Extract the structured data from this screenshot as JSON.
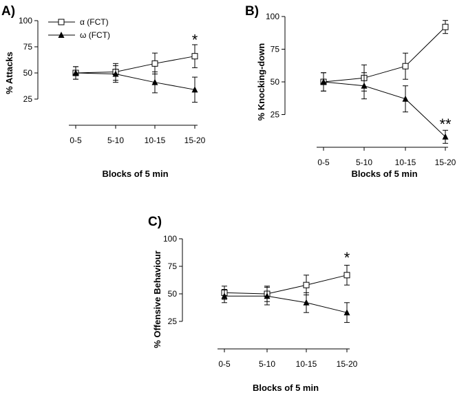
{
  "legend": {
    "items": [
      {
        "name": "alpha",
        "label": "α (FCT)",
        "marker": "open-square"
      },
      {
        "name": "omega",
        "label": "ω (FCT)",
        "marker": "filled-triangle"
      }
    ]
  },
  "chart_data": [
    {
      "type": "line",
      "panel": "A)",
      "xlabel": "Blocks of 5 min",
      "ylabel": "% Attacks",
      "categories": [
        "0-5",
        "5-10",
        "10-15",
        "15-20"
      ],
      "ylim": [
        0,
        100
      ],
      "yticks": [
        25,
        50,
        75,
        100
      ],
      "series": [
        {
          "name": "α (FCT)",
          "values": [
            50,
            51,
            59,
            66
          ],
          "err": [
            6,
            8,
            10,
            11
          ]
        },
        {
          "name": "ω (FCT)",
          "values": [
            50,
            49,
            41,
            34
          ],
          "err": [
            6,
            8,
            10,
            12
          ]
        }
      ],
      "annotations": [
        {
          "text": "*",
          "category": "15-20",
          "y": 82
        }
      ]
    },
    {
      "type": "line",
      "panel": "B)",
      "xlabel": "Blocks of 5 min",
      "ylabel": "% Knocking-down",
      "categories": [
        "0-5",
        "5-10",
        "10-15",
        "15-20"
      ],
      "ylim": [
        0,
        100
      ],
      "yticks": [
        25,
        50,
        75,
        100
      ],
      "series": [
        {
          "name": "α (FCT)",
          "values": [
            50,
            53,
            62,
            92
          ],
          "err": [
            7,
            10,
            10,
            5
          ]
        },
        {
          "name": "ω (FCT)",
          "values": [
            50,
            47,
            37,
            8
          ],
          "err": [
            7,
            10,
            10,
            5
          ]
        }
      ],
      "annotations": [
        {
          "text": "**",
          "category": "15-20",
          "y": 18
        }
      ]
    },
    {
      "type": "line",
      "panel": "C)",
      "xlabel": "Blocks of 5 min",
      "ylabel": "% Offensive Behaviour",
      "categories": [
        "0-5",
        "5-10",
        "10-15",
        "15-20"
      ],
      "ylim": [
        0,
        100
      ],
      "yticks": [
        25,
        50,
        75,
        100
      ],
      "series": [
        {
          "name": "α (FCT)",
          "values": [
            51,
            50,
            58,
            67
          ],
          "err": [
            6,
            7,
            9,
            9
          ]
        },
        {
          "name": "ω (FCT)",
          "values": [
            48,
            48,
            42,
            33
          ],
          "err": [
            6,
            8,
            9,
            9
          ]
        }
      ],
      "annotations": [
        {
          "text": "*",
          "category": "15-20",
          "y": 83
        }
      ]
    }
  ]
}
